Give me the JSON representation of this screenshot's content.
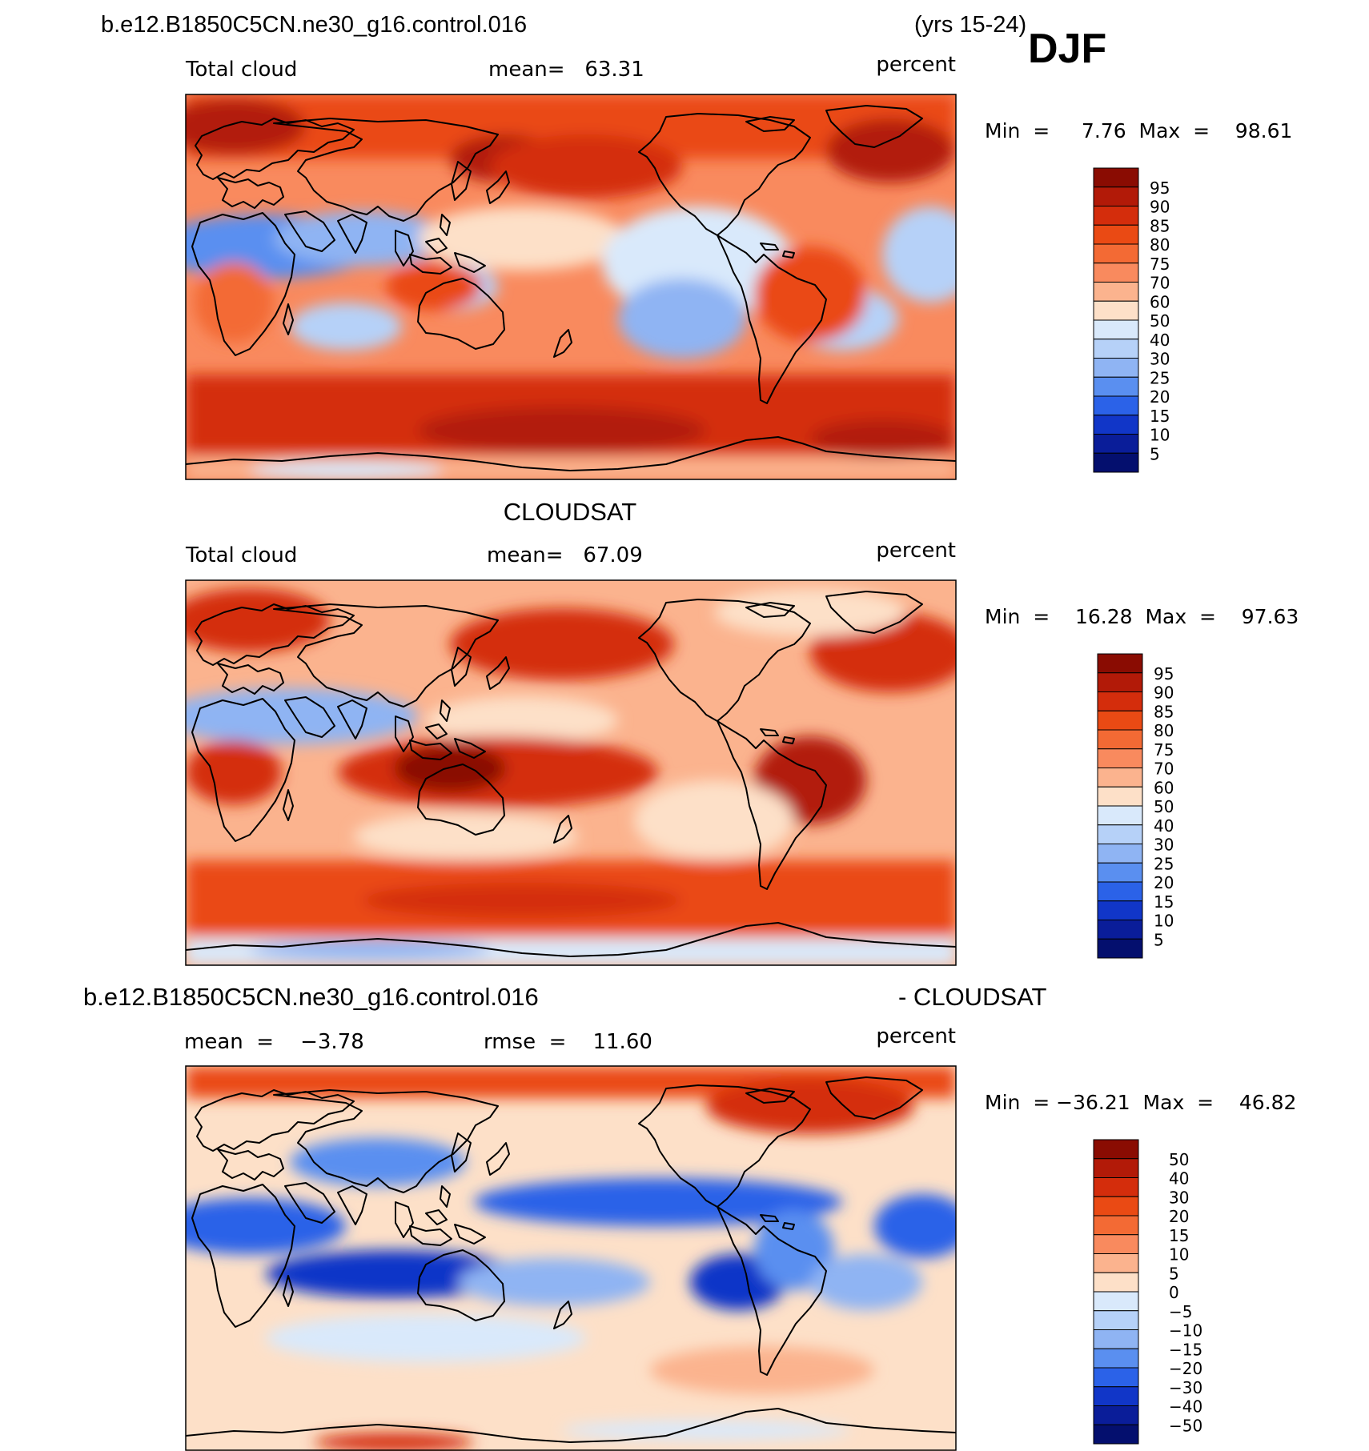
{
  "header": {
    "case_name": "b.e12.B1850C5CN.ne30_g16.control.016",
    "years": "(yrs 15-24)",
    "season": "DJF"
  },
  "panels": [
    {
      "id": "model",
      "title": "",
      "left_label": "Total cloud",
      "center_label": "mean=   63.31",
      "right_label": "percent",
      "minmax": "Min  =     7.76  Max  =    98.61",
      "colorbar": {
        "labels": [
          "95",
          "90",
          "85",
          "80",
          "75",
          "70",
          "60",
          "50",
          "40",
          "30",
          "25",
          "20",
          "15",
          "10",
          "5"
        ],
        "colors": [
          "#8a0c02",
          "#b21a08",
          "#d42d0c",
          "#ea4a14",
          "#f36a34",
          "#f98a5e",
          "#fbb38e",
          "#fde0c8",
          "#d9e9fb",
          "#b6d1f8",
          "#8fb4f3",
          "#5a8ff0",
          "#2b62e8",
          "#1136c8",
          "#0a1d99",
          "#040f6e"
        ]
      }
    },
    {
      "id": "obs",
      "title": "CLOUDSAT",
      "left_label": "Total cloud",
      "center_label": "mean=   67.09",
      "right_label": "percent",
      "minmax": "Min  =    16.28  Max  =    97.63",
      "colorbar": {
        "labels": [
          "95",
          "90",
          "85",
          "80",
          "75",
          "70",
          "60",
          "50",
          "40",
          "30",
          "25",
          "20",
          "15",
          "10",
          "5"
        ],
        "colors": [
          "#8a0c02",
          "#b21a08",
          "#d42d0c",
          "#ea4a14",
          "#f36a34",
          "#f98a5e",
          "#fbb38e",
          "#fde0c8",
          "#d9e9fb",
          "#b6d1f8",
          "#8fb4f3",
          "#5a8ff0",
          "#2b62e8",
          "#1136c8",
          "#0a1d99",
          "#040f6e"
        ]
      }
    },
    {
      "id": "diff",
      "title_left": "b.e12.B1850C5CN.ne30_g16.control.016",
      "title_right": "- CLOUDSAT",
      "left_label": "mean  =    −3.78",
      "center_label": "rmse  =    11.60",
      "right_label": "percent",
      "minmax": "Min  = −36.21  Max  =    46.82",
      "colorbar": {
        "labels": [
          "50",
          "40",
          "30",
          "20",
          "15",
          "10",
          "5",
          "0",
          "−5",
          "−10",
          "−15",
          "−20",
          "−30",
          "−40",
          "−50"
        ],
        "colors": [
          "#8a0c02",
          "#b21a08",
          "#d42d0c",
          "#ea4a14",
          "#f36a34",
          "#f98a5e",
          "#fbb38e",
          "#fde0c8",
          "#d9e9fb",
          "#b6d1f8",
          "#8fb4f3",
          "#5a8ff0",
          "#2b62e8",
          "#1136c8",
          "#0a1d99",
          "#040f6e"
        ]
      }
    }
  ]
}
